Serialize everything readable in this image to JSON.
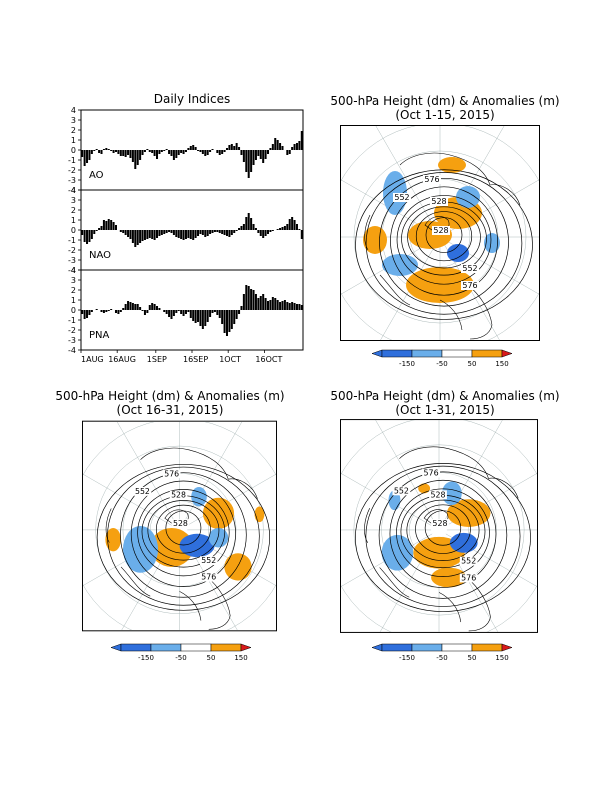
{
  "chart_data": [
    {
      "type": "bar",
      "title": "Daily Indices",
      "x_tick_labels": [
        "1AUG",
        "16AUG",
        "1SEP",
        "16SEP",
        "1OCT",
        "16OCT"
      ],
      "ylim": [
        -4,
        4
      ],
      "y_ticks": [
        "4",
        "3",
        "2",
        "1",
        "0",
        "-1",
        "-2",
        "-3",
        "-4"
      ],
      "series": [
        {
          "name": "AO",
          "values": [
            -0.7,
            -1.6,
            -1.3,
            -1.0,
            -0.4,
            -0.1,
            0.1,
            -0.3,
            -0.4,
            0.1,
            0.2,
            0.1,
            -0.1,
            -0.3,
            -0.2,
            -0.4,
            -0.6,
            -0.6,
            -0.7,
            -0.5,
            -0.8,
            -1.2,
            -1.9,
            -1.5,
            -1.0,
            -0.5,
            -0.2,
            0.1,
            -0.2,
            -0.3,
            -0.6,
            -0.9,
            -0.4,
            -0.2,
            -0.1,
            0.1,
            -0.4,
            -0.6,
            -1.0,
            -0.8,
            -0.5,
            -0.3,
            -0.4,
            -0.2,
            0.2,
            0.4,
            0.5,
            0.3,
            -0.1,
            -0.2,
            -0.4,
            -0.6,
            -0.5,
            -0.2,
            0.1,
            0.0,
            -0.3,
            -0.5,
            -0.4,
            -0.2,
            0.2,
            0.5,
            0.6,
            0.4,
            0.7,
            0.3,
            -0.5,
            -1.2,
            -2.2,
            -2.8,
            -2.2,
            -1.5,
            -1.0,
            -0.6,
            -0.9,
            -1.3,
            -0.9,
            -0.4,
            0.2,
            0.6,
            1.2,
            1.0,
            0.7,
            0.4,
            0.0,
            -0.5,
            -0.4,
            0.3,
            0.6,
            0.7,
            0.9,
            1.9
          ]
        },
        {
          "name": "NAO",
          "values": [
            -0.5,
            -1.2,
            -1.4,
            -1.2,
            -0.9,
            -0.4,
            -0.1,
            0.2,
            0.4,
            1.0,
            0.9,
            1.1,
            1.0,
            0.8,
            0.5,
            0.0,
            -0.2,
            -0.3,
            -0.5,
            -0.7,
            -0.9,
            -1.3,
            -1.7,
            -1.5,
            -1.3,
            -1.1,
            -1.0,
            -0.9,
            -0.8,
            -0.9,
            -1.0,
            -0.8,
            -0.6,
            -0.5,
            -0.4,
            -0.3,
            -0.2,
            -0.3,
            -0.5,
            -0.7,
            -0.8,
            -0.9,
            -1.0,
            -0.9,
            -0.8,
            -0.9,
            -1.0,
            -0.8,
            -0.6,
            -0.4,
            -0.5,
            -0.7,
            -0.6,
            -0.4,
            -0.3,
            -0.2,
            -0.2,
            -0.3,
            -0.4,
            -0.5,
            -0.6,
            -0.7,
            -0.5,
            -0.3,
            -0.1,
            0.2,
            0.4,
            0.6,
            1.3,
            1.7,
            1.2,
            0.6,
            0.2,
            -0.3,
            -0.6,
            -0.8,
            -0.6,
            -0.4,
            -0.2,
            -0.1,
            0.0,
            0.1,
            0.2,
            0.3,
            0.4,
            0.6,
            1.1,
            1.3,
            1.0,
            0.6,
            0.1,
            -0.9
          ]
        },
        {
          "name": "PNA",
          "values": [
            -0.4,
            -0.9,
            -0.8,
            -0.5,
            -0.2,
            0.0,
            0.1,
            0.0,
            -0.2,
            -0.3,
            -0.2,
            -0.1,
            0.1,
            0.0,
            -0.3,
            -0.4,
            -0.2,
            0.2,
            0.6,
            0.9,
            0.8,
            0.7,
            0.6,
            0.6,
            0.3,
            -0.1,
            -0.5,
            -0.3,
            0.5,
            0.7,
            0.6,
            0.4,
            0.2,
            0.0,
            -0.2,
            -0.4,
            -0.7,
            -0.9,
            -0.6,
            -0.3,
            -0.1,
            -0.4,
            -0.6,
            -0.4,
            -0.2,
            -0.8,
            -1.1,
            -1.3,
            -1.2,
            -1.6,
            -1.9,
            -1.6,
            -1.2,
            -0.7,
            -0.3,
            -0.2,
            -0.5,
            -0.8,
            -1.4,
            -2.3,
            -2.6,
            -2.2,
            -1.9,
            -1.4,
            -0.9,
            -0.4,
            0.4,
            1.6,
            2.5,
            2.4,
            2.1,
            2.0,
            1.6,
            1.2,
            1.4,
            1.6,
            1.2,
            0.9,
            1.0,
            1.3,
            1.2,
            1.0,
            0.8,
            0.9,
            1.0,
            0.8,
            0.7,
            0.8,
            0.7,
            0.6,
            0.6,
            0.5
          ]
        }
      ]
    },
    {
      "type": "heatmap",
      "title": "500-hPa Height (dm) & Anomalies (m)",
      "subtitle": "(Oct 1-15, 2015)",
      "contour_labels": [
        "576",
        "552",
        "528",
        "528",
        "552",
        "576"
      ]
    },
    {
      "type": "heatmap",
      "title": "500-hPa Height (dm) & Anomalies (m)",
      "subtitle": "(Oct 16-31, 2015)",
      "contour_labels": [
        "576",
        "552",
        "528",
        "528",
        "552",
        "576"
      ]
    },
    {
      "type": "heatmap",
      "title": "500-hPa Height (dm) & Anomalies (m)",
      "subtitle": "(Oct 1-31, 2015)",
      "contour_labels": [
        "576",
        "552",
        "528",
        "528",
        "552",
        "576"
      ]
    }
  ],
  "colorbar": {
    "labels": [
      "-150",
      "-50",
      "50",
      "150"
    ],
    "colors": [
      "#2f6fdc",
      "#6aaeea",
      "#ffffff",
      "#f5a010",
      "#d81a1a"
    ]
  },
  "colors": {
    "positive_anomaly": "#f5a010",
    "negative_anomaly": "#6aaeea",
    "strong_negative": "#2f6fdc"
  }
}
